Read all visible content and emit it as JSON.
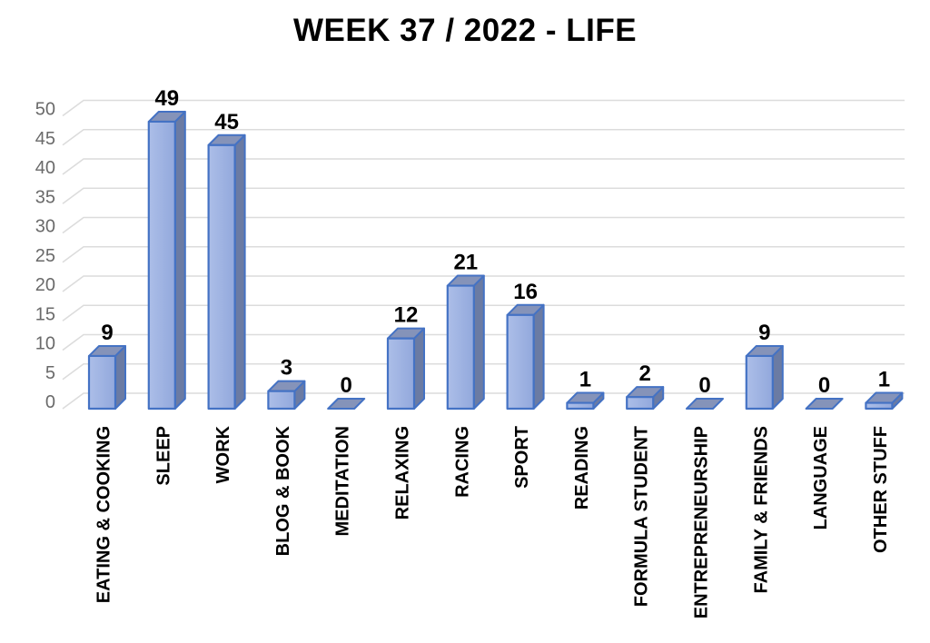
{
  "title": "WEEK 37 / 2022 - LIFE",
  "chart_data": {
    "type": "bar",
    "style": "3d-bar",
    "title": "WEEK 37 / 2022 - LIFE",
    "categories": [
      "EATING & COOKING",
      "SLEEP",
      "WORK",
      "BLOG & BOOK",
      "MEDITATION",
      "RELAXING",
      "RACING",
      "SPORT",
      "READING",
      "FORMULA STUDENT",
      "ENTREPRENEURSHIP",
      "FAMILY & FRIENDS",
      "LANGUAGE",
      "OTHER STUFF"
    ],
    "values": [
      9,
      49,
      45,
      3,
      0,
      12,
      21,
      16,
      1,
      2,
      0,
      9,
      0,
      1
    ],
    "xlabel": "",
    "ylabel": "",
    "ylim": [
      0,
      50
    ],
    "ytick_step": 5,
    "yticks": [
      0,
      5,
      10,
      15,
      20,
      25,
      30,
      35,
      40,
      45,
      50
    ],
    "grid": true,
    "legend_position": "none",
    "colors": {
      "bar_front_light": "#ACBEE8",
      "bar_front_dark": "#92A8DC",
      "bar_side": "#6B7BA3",
      "bar_top": "#8593B9",
      "bar_border": "#4472C4",
      "gridline": "#DCDCDC",
      "tick_text": "#6A6A6A",
      "label_text": "#000000",
      "background": "#FFFFFF"
    }
  }
}
